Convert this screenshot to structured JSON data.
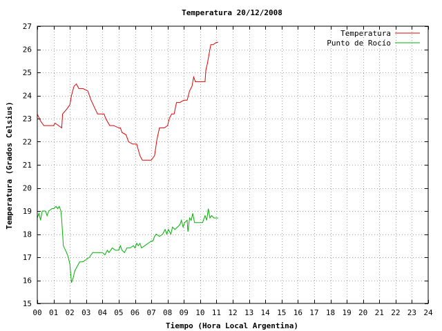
{
  "chart_data": {
    "type": "line",
    "title": "Temperatura 20/12/2008",
    "xlabel": "Tiempo (Hora Local Argentina)",
    "ylabel": "Temperatura (Grados Celsius)",
    "xlim": [
      0,
      24
    ],
    "ylim": [
      15,
      27
    ],
    "x_ticks": [
      "00",
      "01",
      "02",
      "03",
      "04",
      "05",
      "06",
      "07",
      "08",
      "09",
      "10",
      "11",
      "12",
      "13",
      "14",
      "15",
      "16",
      "17",
      "18",
      "19",
      "20",
      "21",
      "22",
      "23",
      "24"
    ],
    "y_ticks": [
      15,
      16,
      17,
      18,
      19,
      20,
      21,
      22,
      23,
      24,
      25,
      26,
      27
    ],
    "grid": true,
    "legend_position": "top-right",
    "series": [
      {
        "name": "Temperatura",
        "color": "#e00000",
        "points": [
          [
            0.0,
            23.2
          ],
          [
            0.2,
            22.9
          ],
          [
            0.4,
            22.7
          ],
          [
            0.6,
            22.7
          ],
          [
            0.8,
            22.7
          ],
          [
            1.0,
            22.7
          ],
          [
            1.1,
            22.8
          ],
          [
            1.3,
            22.7
          ],
          [
            1.5,
            22.6
          ],
          [
            1.55,
            23.2
          ],
          [
            1.8,
            23.4
          ],
          [
            2.0,
            23.6
          ],
          [
            2.1,
            24.0
          ],
          [
            2.25,
            24.4
          ],
          [
            2.4,
            24.5
          ],
          [
            2.55,
            24.3
          ],
          [
            2.8,
            24.3
          ],
          [
            3.1,
            24.2
          ],
          [
            3.3,
            23.8
          ],
          [
            3.5,
            23.5
          ],
          [
            3.7,
            23.2
          ],
          [
            4.0,
            23.2
          ],
          [
            4.1,
            23.2
          ],
          [
            4.2,
            23.0
          ],
          [
            4.45,
            22.7
          ],
          [
            4.7,
            22.7
          ],
          [
            5.0,
            22.6
          ],
          [
            5.1,
            22.6
          ],
          [
            5.2,
            22.4
          ],
          [
            5.45,
            22.3
          ],
          [
            5.6,
            22.0
          ],
          [
            5.85,
            21.9
          ],
          [
            6.1,
            21.9
          ],
          [
            6.3,
            21.4
          ],
          [
            6.45,
            21.2
          ],
          [
            6.7,
            21.2
          ],
          [
            7.0,
            21.2
          ],
          [
            7.2,
            21.4
          ],
          [
            7.35,
            22.1
          ],
          [
            7.5,
            22.6
          ],
          [
            7.8,
            22.6
          ],
          [
            8.0,
            22.7
          ],
          [
            8.1,
            23.0
          ],
          [
            8.25,
            23.2
          ],
          [
            8.4,
            23.2
          ],
          [
            8.55,
            23.7
          ],
          [
            8.75,
            23.7
          ],
          [
            9.0,
            23.8
          ],
          [
            9.2,
            23.8
          ],
          [
            9.35,
            24.2
          ],
          [
            9.5,
            24.4
          ],
          [
            9.6,
            24.8
          ],
          [
            9.7,
            24.6
          ],
          [
            10.0,
            24.6
          ],
          [
            10.3,
            24.6
          ],
          [
            10.35,
            25.1
          ],
          [
            10.45,
            25.4
          ],
          [
            10.55,
            25.8
          ],
          [
            10.65,
            26.2
          ],
          [
            10.8,
            26.2
          ],
          [
            11.0,
            26.3
          ],
          [
            11.1,
            26.3
          ]
        ]
      },
      {
        "name": "Punto de Rocío",
        "color": "#00b000",
        "points": [
          [
            0.0,
            18.7
          ],
          [
            0.1,
            18.9
          ],
          [
            0.2,
            18.6
          ],
          [
            0.3,
            19.0
          ],
          [
            0.5,
            19.0
          ],
          [
            0.6,
            18.8
          ],
          [
            0.7,
            19.0
          ],
          [
            0.9,
            19.1
          ],
          [
            1.0,
            19.1
          ],
          [
            1.15,
            19.2
          ],
          [
            1.25,
            19.1
          ],
          [
            1.35,
            19.2
          ],
          [
            1.45,
            19.0
          ],
          [
            1.5,
            18.6
          ],
          [
            1.6,
            17.5
          ],
          [
            1.8,
            17.2
          ],
          [
            1.9,
            17.0
          ],
          [
            2.0,
            16.7
          ],
          [
            2.05,
            16.3
          ],
          [
            2.1,
            15.9
          ],
          [
            2.2,
            16.1
          ],
          [
            2.3,
            16.4
          ],
          [
            2.45,
            16.6
          ],
          [
            2.6,
            16.8
          ],
          [
            2.8,
            16.8
          ],
          [
            3.0,
            16.9
          ],
          [
            3.2,
            17.0
          ],
          [
            3.3,
            17.1
          ],
          [
            3.4,
            17.2
          ],
          [
            3.6,
            17.2
          ],
          [
            3.8,
            17.2
          ],
          [
            4.0,
            17.2
          ],
          [
            4.15,
            17.1
          ],
          [
            4.3,
            17.3
          ],
          [
            4.4,
            17.2
          ],
          [
            4.6,
            17.4
          ],
          [
            4.8,
            17.3
          ],
          [
            5.0,
            17.3
          ],
          [
            5.1,
            17.5
          ],
          [
            5.2,
            17.3
          ],
          [
            5.35,
            17.2
          ],
          [
            5.5,
            17.4
          ],
          [
            5.7,
            17.4
          ],
          [
            5.9,
            17.5
          ],
          [
            6.0,
            17.4
          ],
          [
            6.1,
            17.6
          ],
          [
            6.2,
            17.5
          ],
          [
            6.3,
            17.6
          ],
          [
            6.4,
            17.4
          ],
          [
            6.6,
            17.5
          ],
          [
            6.8,
            17.6
          ],
          [
            7.0,
            17.7
          ],
          [
            7.1,
            17.7
          ],
          [
            7.2,
            17.9
          ],
          [
            7.3,
            18.0
          ],
          [
            7.5,
            17.9
          ],
          [
            7.7,
            18.0
          ],
          [
            7.85,
            18.2
          ],
          [
            7.95,
            18.0
          ],
          [
            8.05,
            18.2
          ],
          [
            8.2,
            18.0
          ],
          [
            8.3,
            18.3
          ],
          [
            8.45,
            18.2
          ],
          [
            8.6,
            18.3
          ],
          [
            8.75,
            18.4
          ],
          [
            8.85,
            18.6
          ],
          [
            8.95,
            18.3
          ],
          [
            9.05,
            18.5
          ],
          [
            9.2,
            18.6
          ],
          [
            9.25,
            18.1
          ],
          [
            9.35,
            18.7
          ],
          [
            9.45,
            18.6
          ],
          [
            9.55,
            18.9
          ],
          [
            9.65,
            18.5
          ],
          [
            9.8,
            18.5
          ],
          [
            10.0,
            18.5
          ],
          [
            10.15,
            18.5
          ],
          [
            10.3,
            18.8
          ],
          [
            10.4,
            18.6
          ],
          [
            10.5,
            19.1
          ],
          [
            10.6,
            18.7
          ],
          [
            10.7,
            18.8
          ],
          [
            10.85,
            18.7
          ],
          [
            11.0,
            18.7
          ],
          [
            11.1,
            18.7
          ]
        ]
      }
    ]
  }
}
